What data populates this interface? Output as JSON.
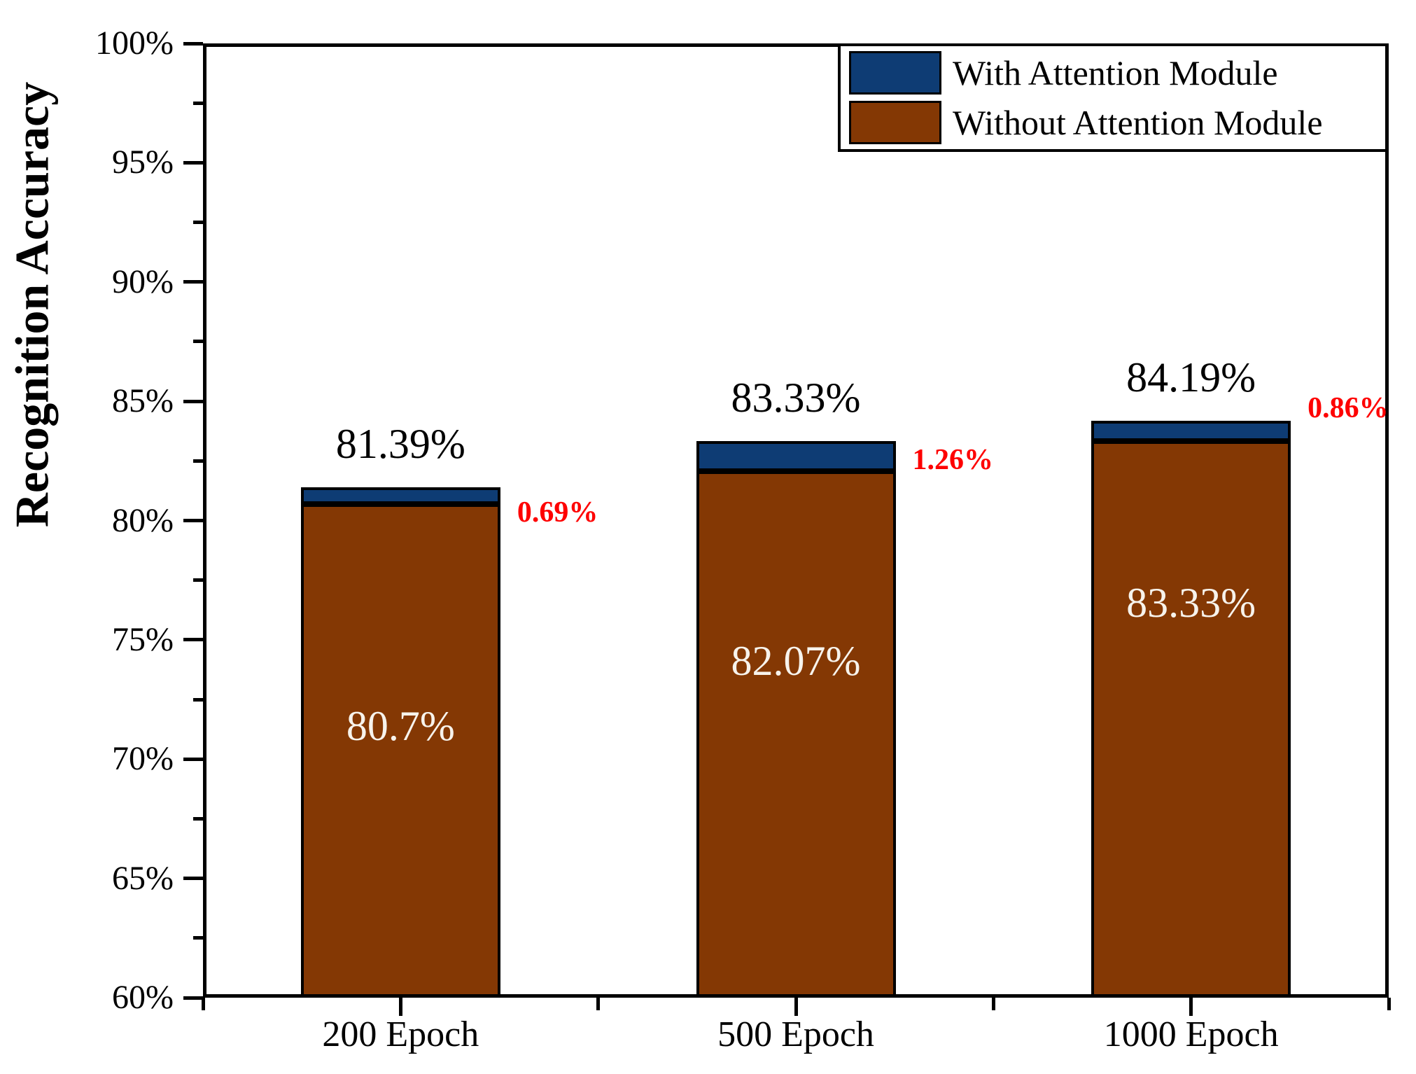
{
  "chart_data": {
    "type": "bar",
    "stacked": true,
    "title": "",
    "ylabel": "Recognition Accuracy",
    "xlabel": "",
    "categories": [
      "200 Epoch",
      "500 Epoch",
      "1000 Epoch"
    ],
    "series": [
      {
        "name": "Without Attention Module",
        "color": "#843804",
        "values": [
          80.7,
          82.07,
          83.33
        ],
        "value_labels": [
          "80.7%",
          "82.07%",
          "83.33%"
        ],
        "value_label_color": "#f7f3ec"
      },
      {
        "name": "With Attention Module",
        "color": "#0e3c74",
        "values": [
          81.39,
          83.33,
          84.19
        ],
        "value_labels": [
          "81.39%",
          "83.33%",
          "84.19%"
        ],
        "value_label_color": "#000000"
      }
    ],
    "diff_labels": {
      "values": [
        "0.69%",
        "1.26%",
        "0.86%"
      ],
      "color": "#fe0000"
    },
    "ylim": [
      60,
      100
    ],
    "y_major_ticks": [
      {
        "value": 60,
        "label": "60%"
      },
      {
        "value": 65,
        "label": "65%"
      },
      {
        "value": 70,
        "label": "70%"
      },
      {
        "value": 75,
        "label": "75%"
      },
      {
        "value": 80,
        "label": "80%"
      },
      {
        "value": 85,
        "label": "85%"
      },
      {
        "value": 90,
        "label": "90%"
      },
      {
        "value": 95,
        "label": "95%"
      },
      {
        "value": 100,
        "label": "100%"
      }
    ],
    "y_minor_tick_values": [
      62.5,
      67.5,
      72.5,
      77.5,
      82.5,
      87.5,
      92.5,
      97.5
    ],
    "grid": false,
    "legend_position": "top-right",
    "legend_order": [
      1,
      0
    ],
    "axis_color": "#000000",
    "background_color": "#ffffff"
  },
  "legend": {
    "items": [
      {
        "label": "With Attention Module",
        "color": "#0e3c74"
      },
      {
        "label": "Without Attention Module",
        "color": "#843804"
      }
    ]
  }
}
